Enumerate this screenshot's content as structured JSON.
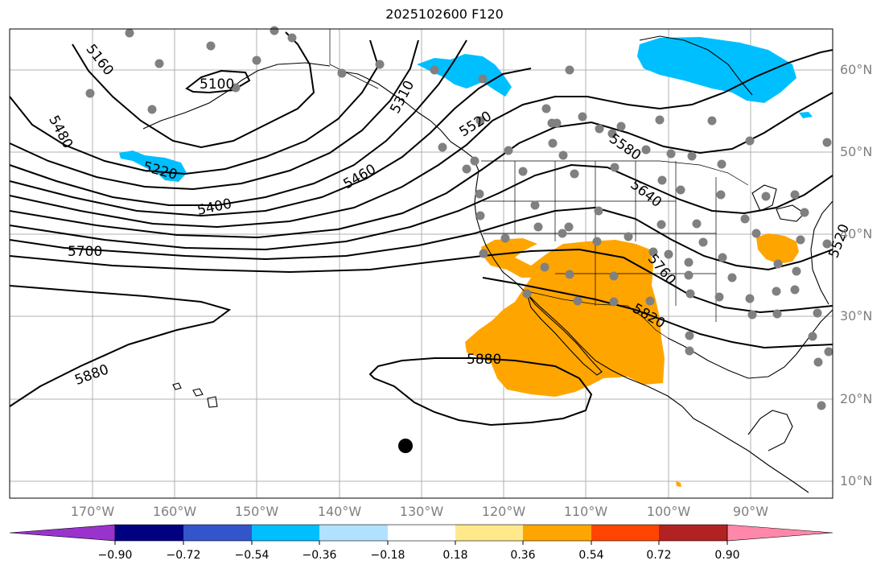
{
  "title": "2025102600 F120",
  "latitude_labels": [
    "60°N",
    "50°N",
    "40°N",
    "30°N",
    "20°N",
    "10°N"
  ],
  "longitude_labels": [
    "170°W",
    "160°W",
    "150°W",
    "140°W",
    "130°W",
    "120°W",
    "110°W",
    "100°W",
    "90°W"
  ],
  "contour_labels": [
    "5160",
    "5100",
    "5480",
    "5220",
    "5400",
    "5460",
    "5520",
    "5580",
    "5640",
    "5700",
    "5760",
    "5820",
    "5880",
    "5880",
    "5520",
    "5310"
  ],
  "colorbar": {
    "ticks": [
      "−0.90",
      "−0.72",
      "−0.54",
      "−0.36",
      "−0.18",
      "0.18",
      "0.36",
      "0.54",
      "0.72",
      "0.90"
    ],
    "colors": [
      "#9933cc",
      "#000080",
      "#3355cc",
      "#00bfff",
      "#b0e2ff",
      "#ffffff",
      "#ffe98a",
      "#ffa500",
      "#ff4500",
      "#b22222",
      "#ff88aa"
    ]
  },
  "fill_colors": {
    "positive_anomaly": "#ffa500",
    "negative_anomaly": "#00bfff"
  },
  "storm_marker": "black-dot"
}
